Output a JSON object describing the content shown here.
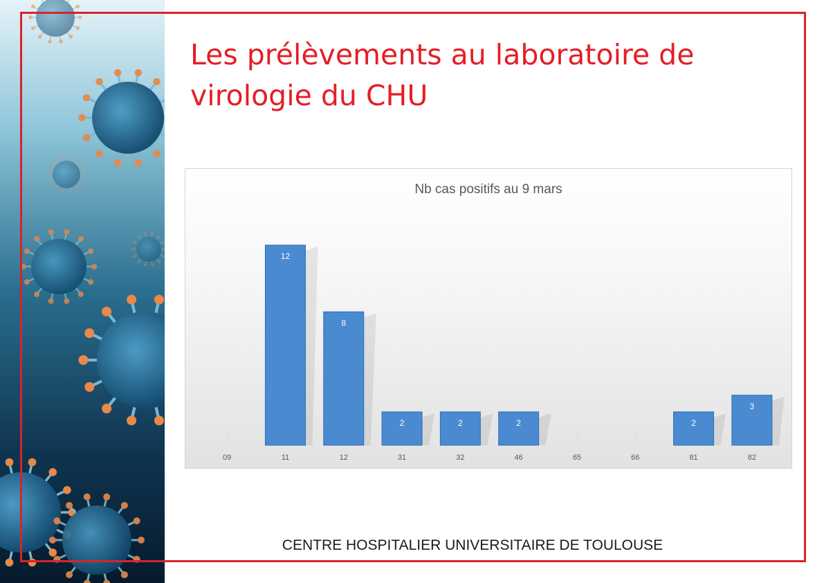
{
  "slide": {
    "title": "Les prélèvements au laboratoire de\nvirologie du CHU",
    "footer": "CENTRE HOSPITALIER UNIVERSITAIRE DE TOULOUSE"
  },
  "colors": {
    "title": "#e41e26",
    "frame": "#d8232a",
    "bar": "#4a8ad0",
    "bar_dark": "#2e6fb8"
  },
  "chart_data": {
    "type": "bar",
    "title": "Nb cas positifs au 9 mars",
    "xlabel": "",
    "ylabel": "",
    "categories": [
      "09",
      "11",
      "12",
      "31",
      "32",
      "46",
      "65",
      "66",
      "81",
      "82"
    ],
    "values": [
      0,
      12,
      8,
      2,
      2,
      2,
      0,
      0,
      2,
      3
    ],
    "ylim": [
      0,
      12
    ],
    "grid": false,
    "legend": "none",
    "data_labels": true
  }
}
